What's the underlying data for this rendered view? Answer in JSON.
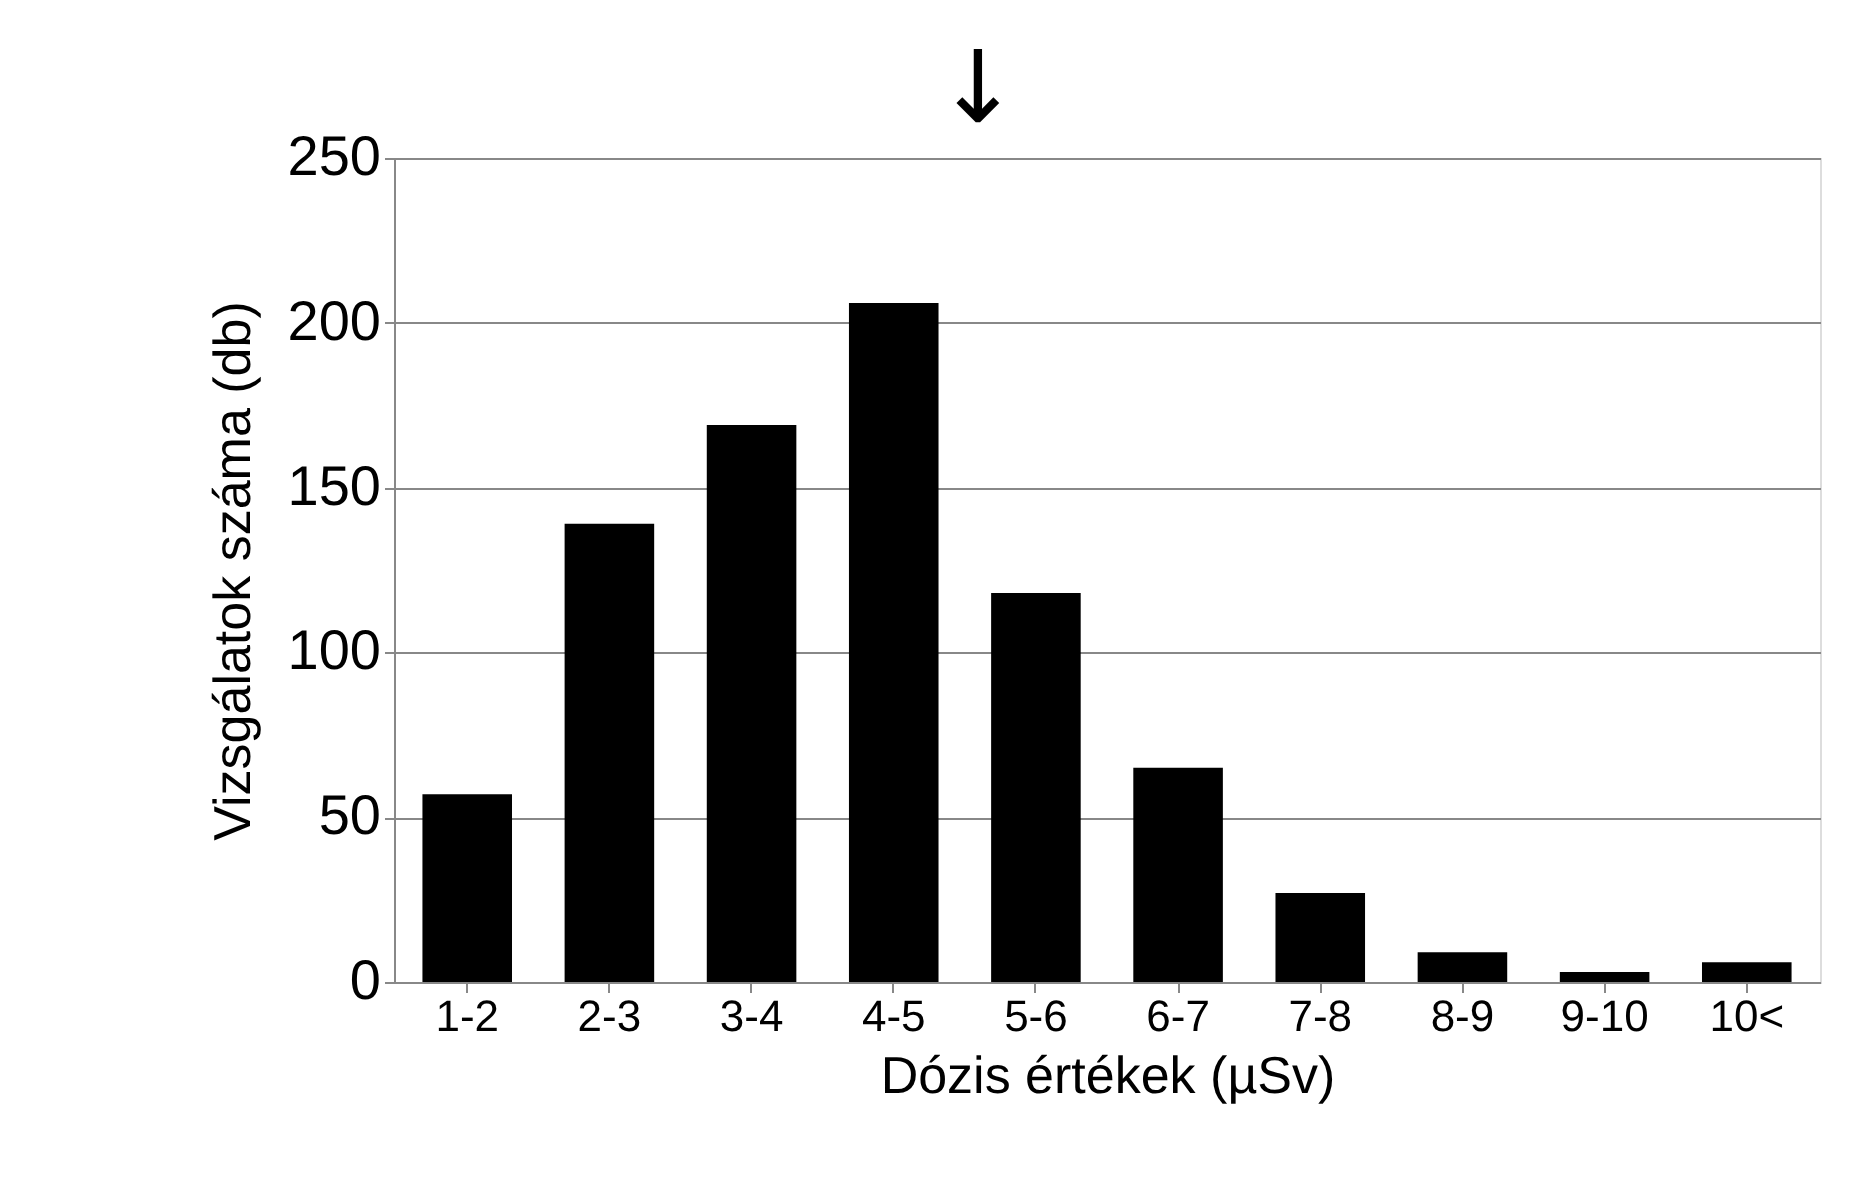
{
  "chart_data": {
    "type": "bar",
    "xlabel": "Dózis értékek (µSv)",
    "ylabel": "Vizsgálatok száma (db)",
    "categories": [
      "1-2",
      "2-3",
      "3-4",
      "4-5",
      "5-6",
      "6-7",
      "7-8",
      "8-9",
      "9-10",
      "10<"
    ],
    "values": [
      57,
      139,
      169,
      206,
      118,
      65,
      27,
      9,
      3,
      6
    ],
    "color": "#000000",
    "ylim": [
      0,
      250
    ],
    "yticks": [
      0,
      50,
      100,
      150,
      200,
      250
    ],
    "grid": "y",
    "annotations": [
      "↓"
    ]
  }
}
